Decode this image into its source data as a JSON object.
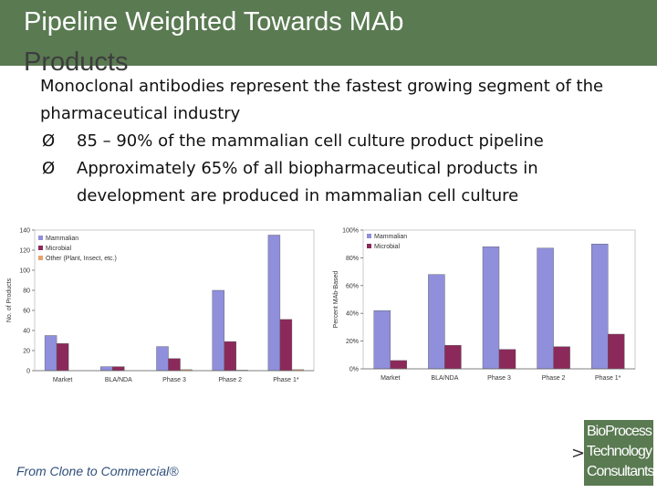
{
  "slide": {
    "title_line1": "Pipeline Weighted Towards MAb",
    "title_line2": "Products",
    "body_line": "Monoclonal antibodies represent the fastest growing segment of the pharmaceutical industry",
    "bullets": [
      "85 – 90% of the mammalian cell culture product pipeline",
      "Approximately 65% of all biopharmaceutical products in development are produced in mammalian cell culture"
    ],
    "bullet_glyph": "Ø",
    "footer": "From Clone to Commercial®",
    "logo": [
      "BioProcess",
      "Technology",
      "Consultants"
    ]
  },
  "chart_data": [
    {
      "type": "bar",
      "title": "",
      "xlabel": "",
      "ylabel": "No. of Products",
      "ylim": [
        0,
        140
      ],
      "yticks": [
        0,
        20,
        40,
        60,
        80,
        100,
        120,
        140
      ],
      "categories": [
        "Market",
        "BLA/NDA",
        "Phase 3",
        "Phase 2",
        "Phase 1*"
      ],
      "legend_position": "top-left",
      "series": [
        {
          "name": "Mammalian",
          "color": "#8f8fdc",
          "values": [
            35,
            4,
            24,
            80,
            135
          ]
        },
        {
          "name": "Microbial",
          "color": "#8b2a5a",
          "values": [
            27,
            4,
            12,
            29,
            51
          ]
        },
        {
          "name": "Other (Plant, Insect, etc.)",
          "color": "#e8a26a",
          "values": [
            0,
            0,
            1,
            0.5,
            1
          ]
        }
      ]
    },
    {
      "type": "bar",
      "title": "",
      "xlabel": "",
      "ylabel": "Percent MAb-Based",
      "ylim": [
        0,
        100
      ],
      "yticks": [
        "0%",
        "20%",
        "40%",
        "60%",
        "80%",
        "100%"
      ],
      "ytick_values": [
        0,
        20,
        40,
        60,
        80,
        100
      ],
      "categories": [
        "Market",
        "BLA/NDA",
        "Phase 3",
        "Phase 2",
        "Phase 1*"
      ],
      "legend_position": "top-left",
      "series": [
        {
          "name": "Mammalian",
          "color": "#8f8fdc",
          "values": [
            42,
            68,
            88,
            87,
            90
          ]
        },
        {
          "name": "Microbial",
          "color": "#8b2a5a",
          "values": [
            6,
            17,
            14,
            16,
            25
          ]
        }
      ]
    }
  ]
}
